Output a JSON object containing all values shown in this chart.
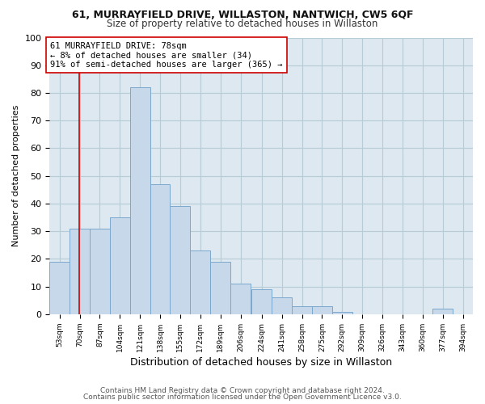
{
  "title1": "61, MURRAYFIELD DRIVE, WILLASTON, NANTWICH, CW5 6QF",
  "title2": "Size of property relative to detached houses in Willaston",
  "xlabel": "Distribution of detached houses by size in Willaston",
  "ylabel": "Number of detached properties",
  "footnote1": "Contains HM Land Registry data © Crown copyright and database right 2024.",
  "footnote2": "Contains public sector information licensed under the Open Government Licence v3.0.",
  "bins": [
    53,
    70,
    87,
    104,
    121,
    138,
    155,
    172,
    189,
    206,
    224,
    241,
    258,
    275,
    292,
    309,
    326,
    343,
    360,
    377,
    394
  ],
  "counts": [
    19,
    31,
    31,
    35,
    82,
    47,
    39,
    23,
    19,
    11,
    9,
    6,
    3,
    3,
    1,
    0,
    0,
    0,
    0,
    2,
    0
  ],
  "bar_color": "#c8d8eb",
  "bar_edge_color": "#7aa8cc",
  "property_size": 78,
  "red_line_color": "#cc0000",
  "annotation_text": "61 MURRAYFIELD DRIVE: 78sqm\n← 8% of detached houses are smaller (34)\n91% of semi-detached houses are larger (365) →",
  "annotation_box_color": "#ffffff",
  "annotation_box_edge": "#cc0000",
  "ylim": [
    0,
    100
  ],
  "background_color": "#ffffff",
  "ax_background": "#dde8f0",
  "grid_color": "#b8ccd8"
}
